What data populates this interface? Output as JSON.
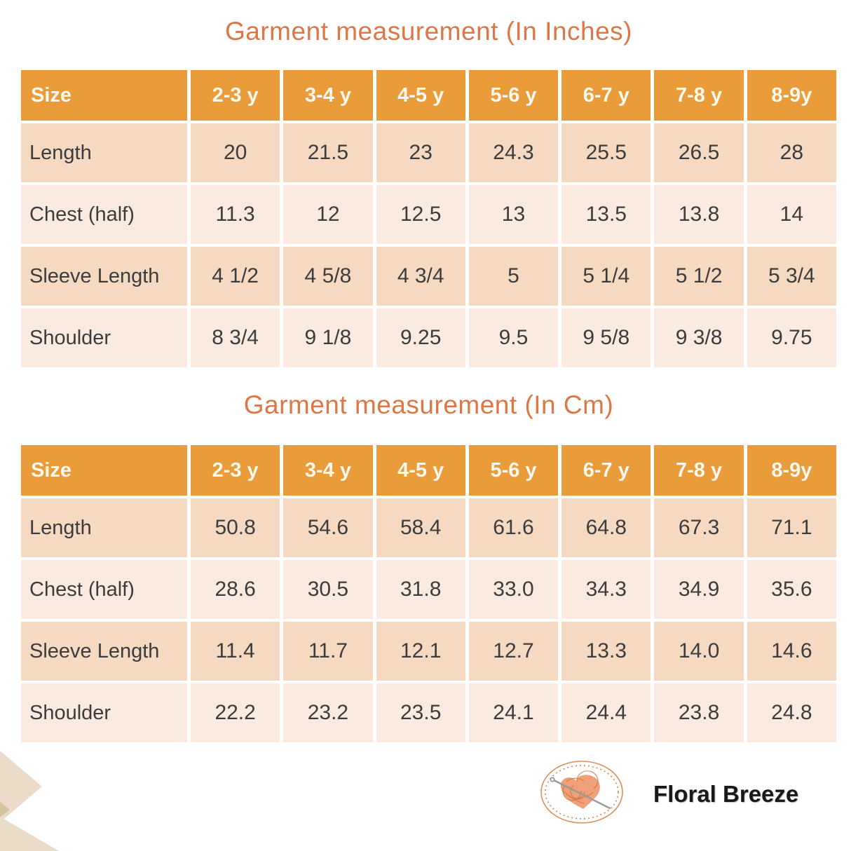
{
  "chart_data": [
    {
      "type": "table",
      "title": "Garment measurement (In Inches)",
      "columns": [
        "Size",
        "2-3 y",
        "3-4 y",
        "4-5 y",
        "5-6 y",
        "6-7 y",
        "7-8 y",
        "8-9y"
      ],
      "rows": [
        {
          "label": "Length",
          "values": [
            "20",
            "21.5",
            "23",
            "24.3",
            "25.5",
            "26.5",
            "28"
          ]
        },
        {
          "label": "Chest (half)",
          "values": [
            "11.3",
            "12",
            "12.5",
            "13",
            "13.5",
            "13.8",
            "14"
          ]
        },
        {
          "label": "Sleeve Length",
          "values": [
            "4 1/2",
            "4 5/8",
            "4 3/4",
            "5",
            "5 1/4",
            "5 1/2",
            "5 3/4"
          ]
        },
        {
          "label": "Shoulder",
          "values": [
            "8 3/4",
            "9 1/8",
            "9.25",
            "9.5",
            "9 5/8",
            "9 3/8",
            "9.75"
          ]
        }
      ]
    },
    {
      "type": "table",
      "title": "Garment measurement (In Cm)",
      "columns": [
        "Size",
        "2-3 y",
        "3-4 y",
        "4-5 y",
        "5-6 y",
        "6-7 y",
        "7-8 y",
        "8-9y"
      ],
      "rows": [
        {
          "label": "Length",
          "values": [
            "50.8",
            "54.6",
            "58.4",
            "61.6",
            "64.8",
            "67.3",
            "71.1"
          ]
        },
        {
          "label": "Chest (half)",
          "values": [
            "28.6",
            "30.5",
            "31.8",
            "33.0",
            "34.3",
            "34.9",
            "35.6"
          ]
        },
        {
          "label": "Sleeve Length",
          "values": [
            "11.4",
            "11.7",
            "12.1",
            "12.7",
            "13.3",
            "14.0",
            "14.6"
          ]
        },
        {
          "label": "Shoulder",
          "values": [
            "22.2",
            "23.2",
            "23.5",
            "24.1",
            "24.4",
            "23.8",
            "24.8"
          ]
        }
      ]
    }
  ],
  "logo": {
    "brand_name": "Floral Breeze",
    "icon": "yarn-heart-with-knitting-needle-in-stitched-oval"
  },
  "palette": {
    "header_bg": "#EA9C3B",
    "header_text": "#FDF8EE",
    "title_text": "#DE7746",
    "row_dark": "#F5DAC1",
    "row_light": "#FBEADF",
    "value_text": "#3C3C3C",
    "decor_beige": "#EADCC9",
    "decor_tan": "#D6C29B",
    "logo_ring": "#DA8F5D",
    "logo_yarn_fill": "#F0A078",
    "logo_yarn_line": "#CE6C3C",
    "logo_needle": "#9A9A9A"
  }
}
